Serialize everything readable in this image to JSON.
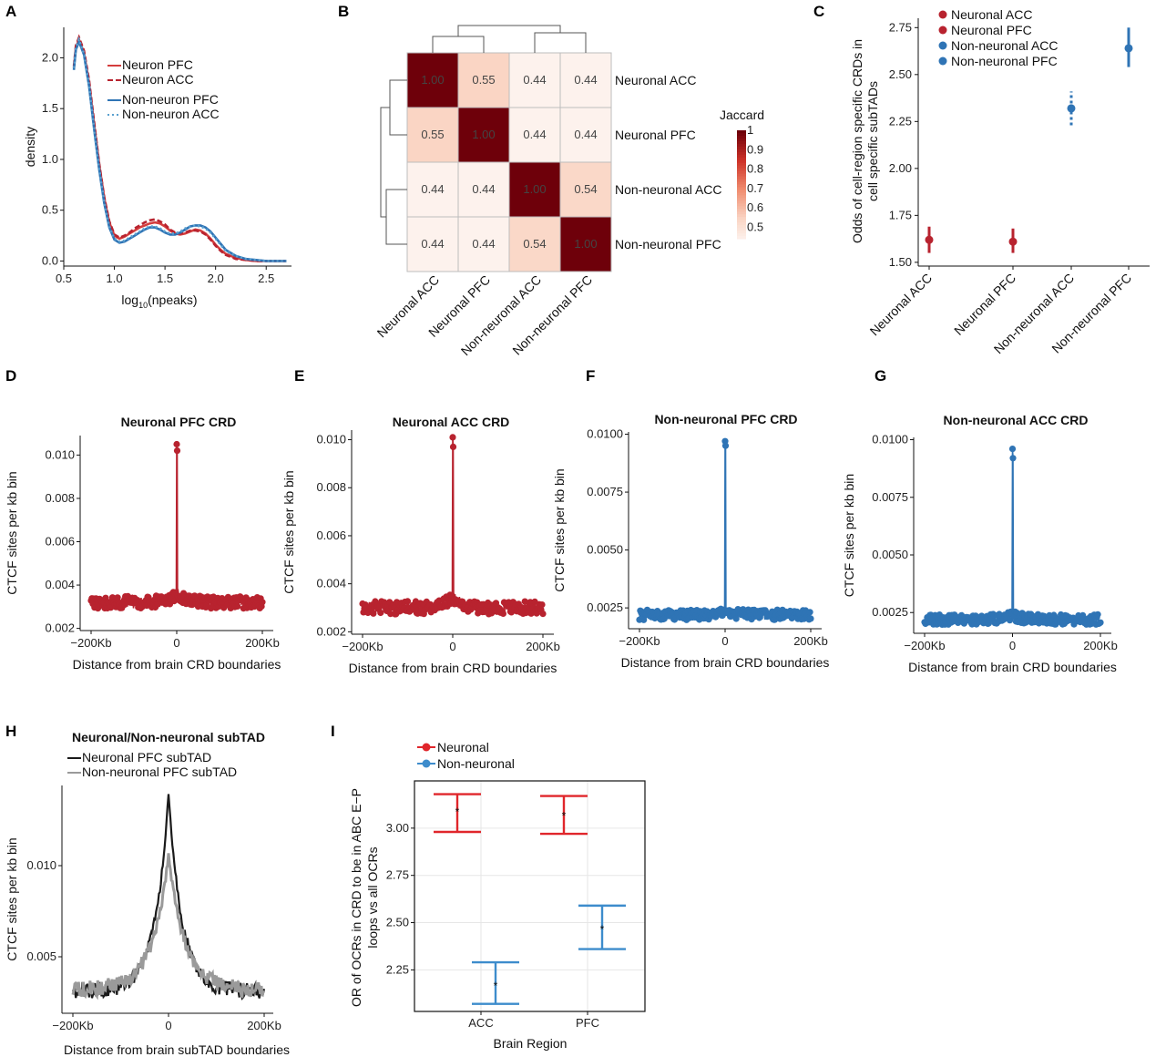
{
  "colors": {
    "red": "#b8232f",
    "blue": "#2f74b5",
    "neuron_red": "#d43d3d",
    "black": "#1a1a1a",
    "gray": "#9a9a9a",
    "err_red": "#e0262b",
    "err_blue": "#3d8ccc"
  },
  "chart_data": [
    {
      "panel": "A",
      "type": "line",
      "xlabel_main": "log",
      "xlabel_sub": "10",
      "xlabel_rest": "(npeaks)",
      "ylabel": "density",
      "xlim": [
        0.5,
        2.75
      ],
      "ylim": [
        -0.05,
        2.3
      ],
      "xticks": [
        "0.5",
        "1.0",
        "1.5",
        "2.0",
        "2.5"
      ],
      "yticks": [
        "0.0",
        "0.5",
        "1.0",
        "1.5",
        "2.0"
      ],
      "x": [
        0.6,
        0.62,
        0.65,
        0.7,
        0.75,
        0.8,
        0.85,
        0.9,
        0.95,
        1.0,
        1.05,
        1.1,
        1.15,
        1.2,
        1.25,
        1.3,
        1.35,
        1.4,
        1.45,
        1.5,
        1.55,
        1.6,
        1.65,
        1.7,
        1.75,
        1.8,
        1.85,
        1.9,
        1.95,
        2.0,
        2.05,
        2.1,
        2.2,
        2.3,
        2.4,
        2.5,
        2.6,
        2.7
      ],
      "series": [
        {
          "name": "Neuron PFC",
          "style": "solid",
          "color": "#d43d3d",
          "values": [
            1.9,
            2.1,
            2.18,
            2.05,
            1.75,
            1.35,
            0.95,
            0.62,
            0.38,
            0.25,
            0.22,
            0.24,
            0.27,
            0.3,
            0.33,
            0.35,
            0.37,
            0.38,
            0.37,
            0.34,
            0.3,
            0.27,
            0.26,
            0.27,
            0.29,
            0.31,
            0.3,
            0.27,
            0.22,
            0.16,
            0.11,
            0.07,
            0.03,
            0.01,
            0.0,
            0.0,
            0.0,
            0.0
          ]
        },
        {
          "name": "Neuron ACC",
          "style": "dash",
          "color": "#b8232f",
          "values": [
            1.92,
            2.12,
            2.2,
            2.07,
            1.78,
            1.37,
            0.96,
            0.63,
            0.39,
            0.26,
            0.23,
            0.25,
            0.28,
            0.32,
            0.35,
            0.38,
            0.4,
            0.41,
            0.39,
            0.36,
            0.31,
            0.28,
            0.27,
            0.28,
            0.3,
            0.3,
            0.29,
            0.26,
            0.21,
            0.15,
            0.1,
            0.06,
            0.02,
            0.01,
            0.0,
            0.0,
            0.0,
            0.0
          ]
        },
        {
          "name": "Non-neuron PFC",
          "style": "solid",
          "color": "#2f74b5",
          "values": [
            1.88,
            2.08,
            2.16,
            2.03,
            1.72,
            1.3,
            0.9,
            0.57,
            0.33,
            0.21,
            0.18,
            0.19,
            0.22,
            0.25,
            0.28,
            0.31,
            0.33,
            0.33,
            0.31,
            0.28,
            0.26,
            0.26,
            0.28,
            0.31,
            0.34,
            0.35,
            0.35,
            0.33,
            0.29,
            0.23,
            0.17,
            0.11,
            0.05,
            0.02,
            0.01,
            0.0,
            0.0,
            0.0
          ]
        },
        {
          "name": "Non-neuron ACC",
          "style": "dot",
          "color": "#5aa0cf",
          "values": [
            1.9,
            2.1,
            2.18,
            2.04,
            1.73,
            1.31,
            0.91,
            0.58,
            0.34,
            0.22,
            0.19,
            0.2,
            0.23,
            0.26,
            0.29,
            0.32,
            0.34,
            0.34,
            0.32,
            0.29,
            0.27,
            0.27,
            0.29,
            0.32,
            0.34,
            0.35,
            0.34,
            0.32,
            0.28,
            0.22,
            0.16,
            0.1,
            0.05,
            0.02,
            0.01,
            0.0,
            0.0,
            0.0
          ]
        }
      ]
    },
    {
      "panel": "B",
      "type": "heatmap",
      "rows": [
        "Neuronal ACC",
        "Neuronal PFC",
        "Non-neuronal ACC",
        "Non-neuronal PFC"
      ],
      "cols": [
        "Neuronal ACC",
        "Neuronal PFC",
        "Non-neuronal ACC",
        "Non-neuronal PFC"
      ],
      "values": [
        [
          1.0,
          0.55,
          0.44,
          0.44
        ],
        [
          0.55,
          1.0,
          0.44,
          0.44
        ],
        [
          0.44,
          0.44,
          1.0,
          0.54
        ],
        [
          0.44,
          0.44,
          0.54,
          1.0
        ]
      ],
      "labels": [
        [
          "1.00",
          "0.55",
          "0.44",
          "0.44"
        ],
        [
          "0.55",
          "1.00",
          "0.44",
          "0.44"
        ],
        [
          "0.44",
          "0.44",
          "1.00",
          "0.54"
        ],
        [
          "0.44",
          "0.44",
          "0.54",
          "1.00"
        ]
      ],
      "legend_title": "Jaccard",
      "legend_ticks": [
        "1",
        "0.9",
        "0.8",
        "0.7",
        "0.6",
        "0.5"
      ]
    },
    {
      "panel": "C",
      "type": "scatter",
      "ylabel_line1": "Odds of cell-region specific CRDs in",
      "ylabel_line2": "cell specific subTADs",
      "ylim": [
        1.48,
        2.8
      ],
      "yticks": [
        "1.50",
        "1.75",
        "2.00",
        "2.25",
        "2.50",
        "2.75"
      ],
      "categories": [
        "Neuronal ACC",
        "Neuronal PFC",
        "Non-neuronal ACC",
        "Non-neuronal PFC"
      ],
      "values": [
        1.62,
        1.61,
        2.32,
        2.64
      ],
      "lower": [
        1.55,
        1.55,
        2.23,
        2.54
      ],
      "upper": [
        1.69,
        1.68,
        2.41,
        2.75
      ],
      "point_colors": [
        "#b8232f",
        "#b8232f",
        "#2f74b5",
        "#2f74b5"
      ],
      "legend": [
        "Neuronal ACC",
        "Neuronal PFC",
        "Non-neuronal ACC",
        "Non-neuronal PFC"
      ]
    },
    {
      "panel": "D",
      "type": "line",
      "title": "Neuronal PFC CRD",
      "color": "#b8232f",
      "ylabel": "CTCF sites per kb bin",
      "xlabel": "Distance from brain CRD boundaries",
      "ylim": [
        0.0019,
        0.0109
      ],
      "yticks": [
        "0.002",
        "0.004",
        "0.006",
        "0.008",
        "0.010"
      ],
      "xticks": [
        "−200Kb",
        "0",
        "200Kb"
      ],
      "base": 0.0032,
      "noise": 0.00028,
      "near": 0.0004,
      "peak": [
        0.0105,
        0.0102
      ]
    },
    {
      "panel": "E",
      "type": "line",
      "title": "Neuronal ACC CRD",
      "color": "#b8232f",
      "ylabel": "CTCF sites per kb bin",
      "xlabel": "Distance from brain CRD boundaries",
      "ylim": [
        0.0019,
        0.0104
      ],
      "yticks": [
        "0.002",
        "0.004",
        "0.006",
        "0.008",
        "0.010"
      ],
      "xticks": [
        "−200Kb",
        "0",
        "200Kb"
      ],
      "base": 0.003,
      "noise": 0.00027,
      "near": 0.0005,
      "peak": [
        0.0101,
        0.0097
      ]
    },
    {
      "panel": "F",
      "type": "line",
      "title": "Non-neuronal PFC CRD",
      "color": "#2f74b5",
      "ylabel": "CTCF sites per kb bin",
      "xlabel": "Distance from brain CRD boundaries",
      "ylim": [
        0.0016,
        0.0101
      ],
      "yticks": [
        "0.0025",
        "0.0050",
        "0.0075",
        "0.0100"
      ],
      "xticks": [
        "−200Kb",
        "0",
        "200Kb"
      ],
      "base": 0.0022,
      "noise": 0.00022,
      "near": 0.0002,
      "peak": [
        0.0097,
        0.0095
      ]
    },
    {
      "panel": "G",
      "type": "line",
      "title": "Non-neuronal ACC CRD",
      "color": "#2f74b5",
      "ylabel": "CTCF sites per kb bin",
      "xlabel": "Distance from brain CRD boundaries",
      "ylim": [
        0.0016,
        0.0101
      ],
      "yticks": [
        "0.0025",
        "0.0050",
        "0.0075",
        "0.0100"
      ],
      "xticks": [
        "−200Kb",
        "0",
        "200Kb"
      ],
      "base": 0.0022,
      "noise": 0.00022,
      "near": 0.0002,
      "peak": [
        0.0096,
        0.0092
      ]
    },
    {
      "panel": "H",
      "type": "line",
      "title": "Neuronal/Non-neuronal subTAD",
      "ylabel": "CTCF sites per kb bin",
      "xlabel": "Distance from brain subTAD boundaries",
      "ylim": [
        0.0019,
        0.0144
      ],
      "yticks": [
        "0.005",
        "0.010"
      ],
      "xticks": [
        "−200Kb",
        "0",
        "200Kb"
      ],
      "series": [
        {
          "name": "Neuronal PFC subTAD",
          "color": "#1a1a1a",
          "base": 0.0031,
          "peak": 0.0139,
          "width": 28
        },
        {
          "name": "Non-neuronal  PFC subTAD",
          "color": "#9a9a9a",
          "base": 0.0032,
          "peak": 0.0105,
          "width": 34
        }
      ]
    },
    {
      "panel": "I",
      "type": "scatter",
      "ylabel_line1": "OR of OCRs in CRD to be in ABC E−P",
      "ylabel_line2": "loops vs all OCRs",
      "xlabel": "Brain Region",
      "categories": [
        "ACC",
        "PFC"
      ],
      "ylim": [
        2.03,
        3.25
      ],
      "yticks": [
        "2.25",
        "2.50",
        "2.75",
        "3.00"
      ],
      "series": [
        {
          "name": "Neuronal",
          "color": "#e0262b",
          "values": [
            3.09,
            3.07
          ],
          "lower": [
            2.98,
            2.97
          ],
          "upper": [
            3.18,
            3.17
          ],
          "offset": -0.22
        },
        {
          "name": "Non-neuronal",
          "color": "#3d8ccc",
          "values": [
            2.17,
            2.47
          ],
          "lower": [
            2.07,
            2.36
          ],
          "upper": [
            2.29,
            2.59
          ],
          "offset": 0.22
        }
      ]
    }
  ]
}
